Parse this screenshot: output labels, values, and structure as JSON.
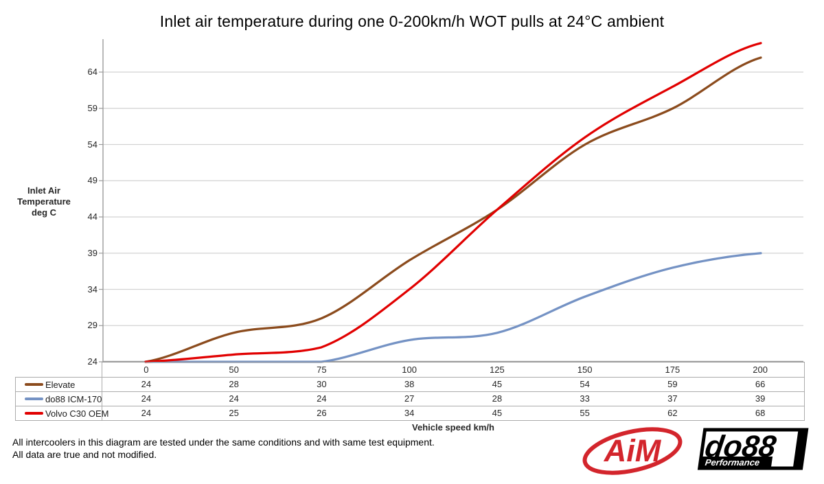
{
  "chart_data": {
    "type": "line",
    "title": "Inlet air temperature during one 0-200km/h WOT pulls at 24°C ambient",
    "xlabel": "Vehicle speed km/h",
    "ylabel_lines": [
      "Inlet Air",
      "Temperature",
      "deg C"
    ],
    "categories": [
      "0",
      "50",
      "75",
      "100",
      "125",
      "150",
      "175",
      "200"
    ],
    "y_ticks": [
      24,
      29,
      34,
      39,
      44,
      49,
      54,
      59,
      64
    ],
    "ylim": [
      24,
      68.5
    ],
    "grid": true,
    "legend_position": "table-left",
    "series": [
      {
        "name": "Elevate",
        "color": "#8B4B1D",
        "values": [
          24,
          28,
          30,
          38,
          45,
          54,
          59,
          66
        ]
      },
      {
        "name": "do88 ICM-170",
        "color": "#7492C4",
        "values": [
          24,
          24,
          24,
          27,
          28,
          33,
          37,
          39
        ]
      },
      {
        "name": "Volvo C30 OEM",
        "color": "#E10000",
        "values": [
          24,
          25,
          26,
          34,
          45,
          55,
          62,
          68
        ]
      }
    ]
  },
  "footer": {
    "notes": [
      "All intercoolers in this diagram are tested under the same conditions and with same test equipment.",
      "All data are true and not modified."
    ],
    "logos": {
      "aim": "AiM",
      "do88": "do88",
      "do88_tagline": "Performance"
    }
  },
  "colors": {
    "gridline": "#D2D2D2",
    "axis": "#9B9B9B",
    "table_border": "#ABABAB",
    "aim_red": "#D3252C",
    "logo_black": "#000000"
  }
}
